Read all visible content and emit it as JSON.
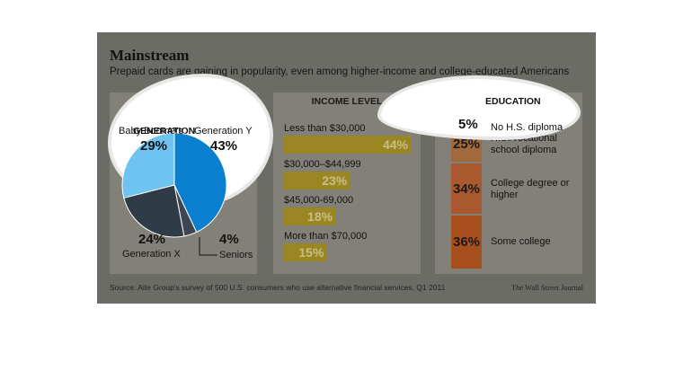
{
  "title": "Mainstream",
  "subtitle": "Prepaid cards are gaining in popularity, even among higher-income and college-educated Americans",
  "source": "Source: Aite Group's survey of 500 U.S. consumers who use alternative financial services, Q1 2011",
  "brand": "The Wall Street Journal",
  "colors": {
    "gen_y": "#0a7fd0",
    "baby_boomers": "#6ec3f0",
    "gen_x_dark": "#1b2a3a",
    "gen_x_grey": "#2f3b46",
    "seniors": "#3d4650",
    "income_bar": "#9a8724",
    "edu_1": "#9c7a4b",
    "edu_2": "#a06a3c",
    "edu_3": "#a9592d",
    "edu_4": "#a8501d"
  },
  "chart_data": [
    {
      "type": "pie",
      "title": "GENERATION",
      "slices": [
        {
          "name": "Generation Y",
          "value": 43,
          "label": "43%"
        },
        {
          "name": "Seniors",
          "value": 4,
          "label": "4%"
        },
        {
          "name": "Generation X",
          "value": 24,
          "label": "24%"
        },
        {
          "name": "Baby Boomers",
          "value": 29,
          "label": "29%"
        }
      ]
    },
    {
      "type": "bar",
      "title": "INCOME LEVEL",
      "categories": [
        "Less than $30,000",
        "$30,000–$44,999",
        "$45,000-69,000",
        "More than $70,000"
      ],
      "values": [
        44,
        23,
        18,
        15
      ],
      "value_labels": [
        "44%",
        "23%",
        "18%",
        "15%"
      ]
    },
    {
      "type": "bar",
      "title": "EDUCATION",
      "categories": [
        "No H.S. diploma",
        "H.S./vocational school diploma",
        "College degree or higher",
        "Some college"
      ],
      "values": [
        5,
        25,
        34,
        36
      ],
      "value_labels": [
        "5%",
        "25%",
        "34%",
        "36%"
      ]
    }
  ],
  "labels": {
    "gen_y_name": "Generation Y",
    "gen_y_pct": "43%",
    "boomers_name": "Baby Boomers",
    "boomers_pct": "29%",
    "genx_name": "Generation X",
    "genx_pct": "24%",
    "seniors_name": "Seniors",
    "seniors_pct": "4%",
    "edu_labels": [
      "No H.S. diploma",
      "H.S./vocational\nschool diploma",
      "College degree or\nhigher",
      "Some college"
    ]
  }
}
